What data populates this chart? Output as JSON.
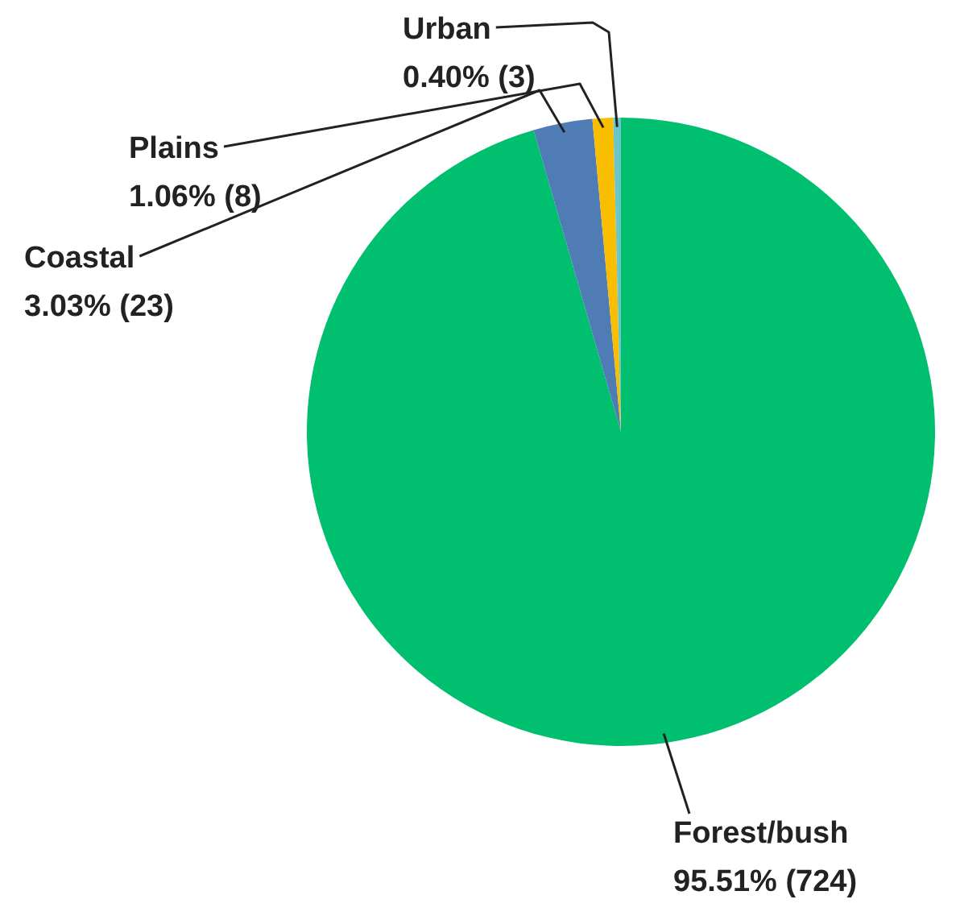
{
  "chart_data": {
    "type": "pie",
    "categories": [
      "Forest/bush",
      "Coastal",
      "Plains",
      "Urban"
    ],
    "values": [
      724,
      23,
      8,
      3
    ],
    "colors": [
      "#00bf6f",
      "#507cb6",
      "#f9be00",
      "#6cc5c9"
    ],
    "value_labels": [
      "95.51% (724)",
      "3.03% (23)",
      "1.06% (8)",
      "0.40% (3)"
    ],
    "legend": false
  }
}
